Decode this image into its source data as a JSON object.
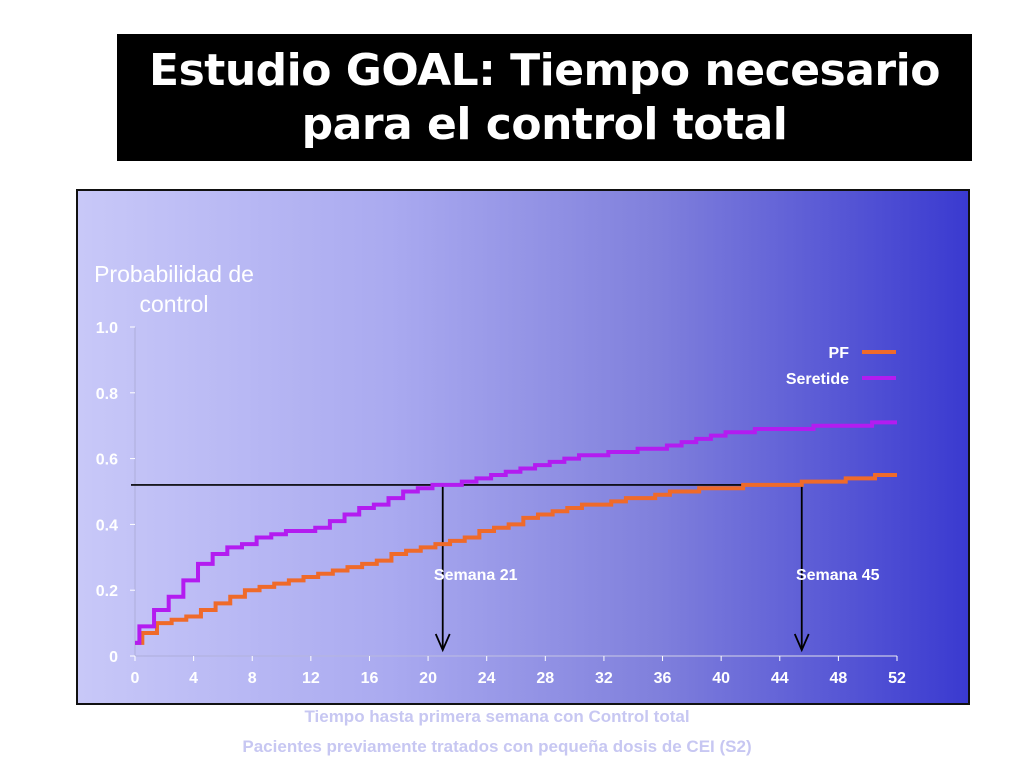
{
  "slide": {
    "title_line1": "Estudio GOAL: Tiempo necesario",
    "title_line2": "para el control total",
    "footnote1": "Tiempo hasta primera semana con Control total",
    "footnote2": "Pacientes previamente tratados con pequeña dosis de CEI (S2)"
  },
  "chart_data": {
    "type": "line",
    "ylabel_line1": "Probabilidad de",
    "ylabel_line2": "control",
    "xlabel": "",
    "xlim": [
      0,
      52
    ],
    "ylim": [
      0,
      1.0
    ],
    "x_ticks": [
      "0",
      "4",
      "8",
      "12",
      "16",
      "20",
      "24",
      "28",
      "32",
      "36",
      "40",
      "44",
      "48",
      "52"
    ],
    "y_ticks": [
      {
        "value": 0,
        "label": "0"
      },
      {
        "value": 0.2,
        "label": "0.2"
      },
      {
        "value": 0.4,
        "label": "0.4"
      },
      {
        "value": 0.6,
        "label": "0.6"
      },
      {
        "value": 0.8,
        "label": "0.8"
      },
      {
        "value": 1.0,
        "label": "1.0"
      }
    ],
    "grid": false,
    "legend_position": "top-right",
    "series": [
      {
        "name": "PF",
        "color": "#ef6a2a",
        "x": [
          0,
          0.5,
          1.5,
          2.5,
          3.5,
          4.5,
          5.5,
          6.5,
          7.5,
          8.5,
          9.5,
          10.5,
          11.5,
          12.5,
          13.5,
          14.5,
          15.5,
          16.5,
          17.5,
          18.5,
          19.5,
          20.5,
          21.5,
          22.5,
          23.5,
          24.5,
          25.5,
          26.5,
          27.5,
          28.5,
          29.5,
          30.5,
          31.5,
          32.5,
          33.5,
          34.5,
          35.5,
          36.5,
          37.5,
          38.5,
          39.5,
          40.5,
          41.5,
          42.5,
          43.5,
          44.5,
          45.5,
          46.5,
          47.5,
          48.5,
          49.5,
          50.5,
          51.5,
          52
        ],
        "y": [
          0.04,
          0.07,
          0.1,
          0.11,
          0.12,
          0.14,
          0.16,
          0.18,
          0.2,
          0.21,
          0.22,
          0.23,
          0.24,
          0.25,
          0.26,
          0.27,
          0.28,
          0.29,
          0.31,
          0.32,
          0.33,
          0.34,
          0.35,
          0.36,
          0.38,
          0.39,
          0.4,
          0.42,
          0.43,
          0.44,
          0.45,
          0.46,
          0.46,
          0.47,
          0.48,
          0.48,
          0.49,
          0.5,
          0.5,
          0.51,
          0.51,
          0.51,
          0.52,
          0.52,
          0.52,
          0.52,
          0.53,
          0.53,
          0.53,
          0.54,
          0.54,
          0.55,
          0.55,
          0.55
        ]
      },
      {
        "name": "Seretide",
        "color": "#b31cf0",
        "x": [
          0,
          0.3,
          1.3,
          2.3,
          3.3,
          4.3,
          5.3,
          6.3,
          7.3,
          8.3,
          9.3,
          10.3,
          11.3,
          12.3,
          13.3,
          14.3,
          15.3,
          16.3,
          17.3,
          18.3,
          19.3,
          20.3,
          21.3,
          22.3,
          23.3,
          24.3,
          25.3,
          26.3,
          27.3,
          28.3,
          29.3,
          30.3,
          31.3,
          32.3,
          33.3,
          34.3,
          35.3,
          36.3,
          37.3,
          38.3,
          39.3,
          40.3,
          41.3,
          42.3,
          43.3,
          44.3,
          45.3,
          46.3,
          47.3,
          48.3,
          49.3,
          50.3,
          51.3,
          52
        ],
        "y": [
          0.04,
          0.09,
          0.14,
          0.18,
          0.23,
          0.28,
          0.31,
          0.33,
          0.34,
          0.36,
          0.37,
          0.38,
          0.38,
          0.39,
          0.41,
          0.43,
          0.45,
          0.46,
          0.48,
          0.5,
          0.51,
          0.52,
          0.52,
          0.53,
          0.54,
          0.55,
          0.56,
          0.57,
          0.58,
          0.59,
          0.6,
          0.61,
          0.61,
          0.62,
          0.62,
          0.63,
          0.63,
          0.64,
          0.65,
          0.66,
          0.67,
          0.68,
          0.68,
          0.69,
          0.69,
          0.69,
          0.69,
          0.7,
          0.7,
          0.7,
          0.7,
          0.71,
          0.71,
          0.71
        ]
      }
    ],
    "reference": {
      "y": 0.52,
      "markers": [
        {
          "x": 21,
          "label": "Semana 21"
        },
        {
          "x": 45.5,
          "label": "Semana 45"
        }
      ]
    }
  }
}
